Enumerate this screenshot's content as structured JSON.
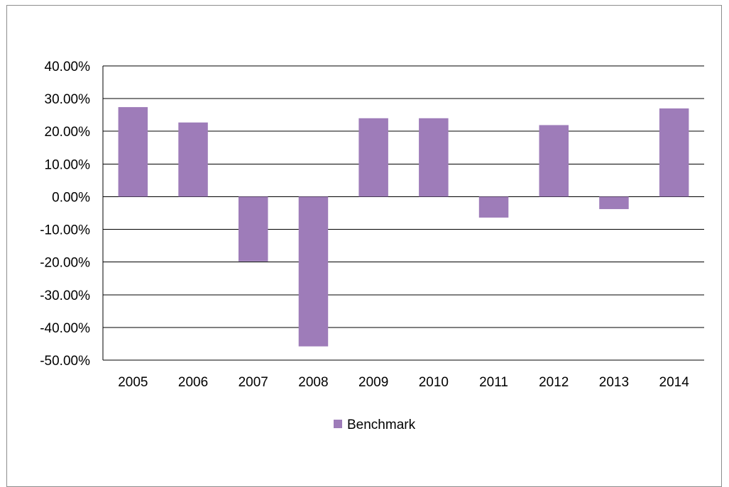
{
  "chart_data": {
    "type": "bar",
    "categories": [
      "2005",
      "2006",
      "2007",
      "2008",
      "2009",
      "2010",
      "2011",
      "2012",
      "2013",
      "2014"
    ],
    "series": [
      {
        "name": "Benchmark",
        "color": "#9e7cb9",
        "values": [
          0.274,
          0.227,
          -0.198,
          -0.458,
          0.24,
          0.24,
          -0.064,
          0.219,
          -0.038,
          0.27
        ]
      }
    ],
    "ylim": [
      -0.5,
      0.4
    ],
    "yticks": [
      0.4,
      0.3,
      0.2,
      0.1,
      0.0,
      -0.1,
      -0.2,
      -0.3,
      -0.4,
      -0.5
    ],
    "ytick_labels": [
      "40.00%",
      "30.00%",
      "20.00%",
      "10.00%",
      "0.00%",
      "-10.00%",
      "-20.00%",
      "-30.00%",
      "-40.00%",
      "-50.00%"
    ],
    "grid": true,
    "legend_position": "bottom-center",
    "title": "",
    "xlabel": "",
    "ylabel": ""
  }
}
